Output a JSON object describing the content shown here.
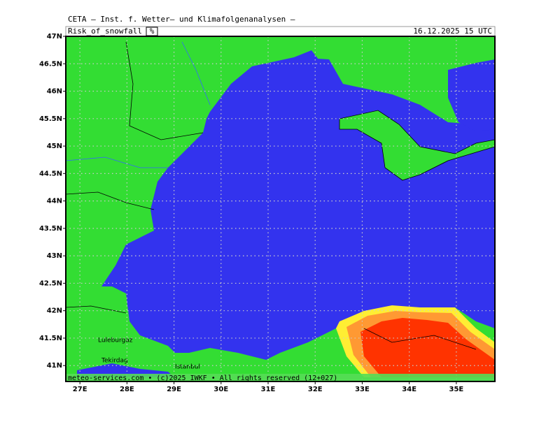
{
  "map": {
    "header": "CETA — Inst. f. Wetter— und Klimafolgenanalysen —",
    "variable": "Risk_of_snowfall",
    "unit": "%",
    "valid_time": "16.12.2025 15 UTC",
    "footer": "meteo-services.com • (c)2025 IWKF • All rights reserved (12+027)",
    "lonlim": [
      26.7,
      35.82
    ],
    "latlim": [
      40.71,
      47
    ],
    "lon_ticks": [
      {
        "value": 27,
        "label": "27E"
      },
      {
        "value": 28,
        "label": "28E"
      },
      {
        "value": 29,
        "label": "29E"
      },
      {
        "value": 30,
        "label": "30E"
      },
      {
        "value": 31,
        "label": "31E"
      },
      {
        "value": 32,
        "label": "32E"
      },
      {
        "value": 33,
        "label": "33E"
      },
      {
        "value": 34,
        "label": "34E"
      },
      {
        "value": 35,
        "label": "35E"
      }
    ],
    "lat_ticks": [
      {
        "value": 47,
        "label": "47N"
      },
      {
        "value": 46.5,
        "label": "46.5N"
      },
      {
        "value": 46,
        "label": "46N"
      },
      {
        "value": 45.5,
        "label": "45.5N"
      },
      {
        "value": 45,
        "label": "45N"
      },
      {
        "value": 44.5,
        "label": "44.5N"
      },
      {
        "value": 44,
        "label": "44N"
      },
      {
        "value": 43.5,
        "label": "43.5N"
      },
      {
        "value": 43,
        "label": "43N"
      },
      {
        "value": 42.5,
        "label": "42.5N"
      },
      {
        "value": 42,
        "label": "42N"
      },
      {
        "value": 41.5,
        "label": "41.5N"
      },
      {
        "value": 41,
        "label": "41N"
      }
    ],
    "places": [
      "Luleburgaz",
      "Tekirdag",
      "Istanbul"
    ]
  }
}
